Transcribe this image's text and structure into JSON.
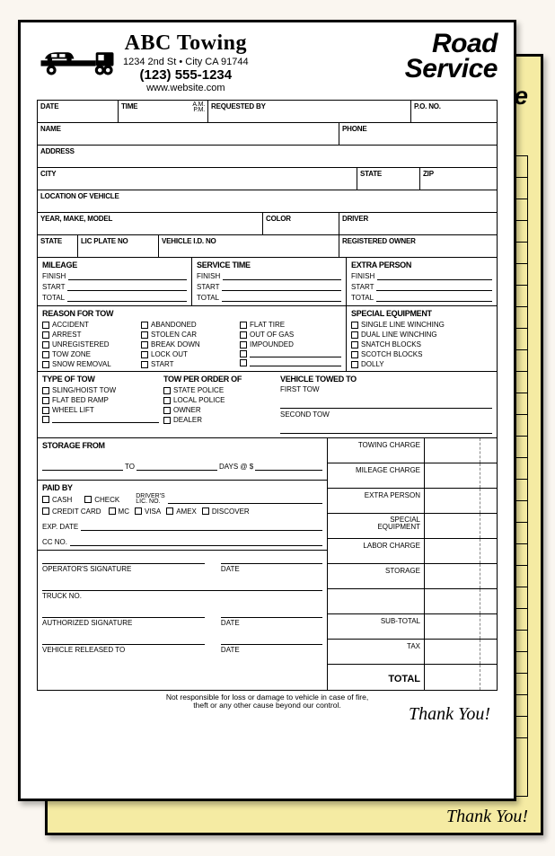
{
  "header": {
    "company_name": "ABC Towing",
    "address": "1234  2nd St • City CA 91744",
    "phone": "(123) 555-1234",
    "website": "www.website.com",
    "title_line1": "Road",
    "title_line2": "Service"
  },
  "colors": {
    "page_bg": "#faf6f0",
    "form_bg": "#ffffff",
    "copy_bg": "#f5eba3",
    "ink": "#000000"
  },
  "fonts": {
    "company_name": {
      "family": "Comic Sans MS",
      "size_pt": 24,
      "weight": "bold"
    },
    "road_service": {
      "family": "Arial Black",
      "size_pt": 30,
      "weight": "900",
      "style": "italic"
    },
    "field_label": {
      "family": "Arial",
      "size_pt": 8,
      "weight": "bold"
    },
    "section_title": {
      "family": "Arial",
      "size_pt": 9,
      "weight": "bold"
    },
    "body": {
      "family": "Arial",
      "size_pt": 8
    },
    "thank_you": {
      "family": "Brush Script MT",
      "size_pt": 20,
      "style": "italic"
    }
  },
  "fields": {
    "date": "DATE",
    "time": "TIME",
    "am": "A.M.",
    "pm": "P.M.",
    "requested_by": "REQUESTED BY",
    "po_no": "P.O. NO.",
    "name": "NAME",
    "phone": "PHONE",
    "address": "ADDRESS",
    "city": "CITY",
    "state": "STATE",
    "zip": "ZIP",
    "location": "LOCATION OF VEHICLE",
    "ymm": "YEAR, MAKE, MODEL",
    "color": "COLOR",
    "driver": "DRIVER",
    "state2": "STATE",
    "lic_plate": "LIC PLATE NO",
    "vin": "VEHICLE I.D. NO",
    "reg_owner": "REGISTERED OWNER"
  },
  "mileage": {
    "title": "MILEAGE",
    "finish": "FINISH",
    "start": "START",
    "total": "TOTAL"
  },
  "service_time": {
    "title": "SERVICE TIME",
    "finish": "FINISH",
    "start": "START",
    "total": "TOTAL"
  },
  "extra_person": {
    "title": "EXTRA PERSON",
    "finish": "FINISH",
    "start": "START",
    "total": "TOTAL"
  },
  "reason": {
    "title": "REASON FOR TOW",
    "col1": [
      "ACCIDENT",
      "ARREST",
      "UNREGISTERED",
      "TOW ZONE",
      "SNOW REMOVAL"
    ],
    "col2": [
      "ABANDONED",
      "STOLEN CAR",
      "BREAK DOWN",
      "LOCK OUT",
      "START"
    ],
    "col3": [
      "FLAT TIRE",
      "OUT OF GAS",
      "IMPOUNDED",
      "",
      ""
    ]
  },
  "equipment": {
    "title": "SPECIAL EQUIPMENT",
    "items": [
      "SINGLE LINE WINCHING",
      "DUAL LINE WINCHING",
      "SNATCH BLOCKS",
      "SCOTCH BLOCKS",
      "DOLLY"
    ]
  },
  "type_of_tow": {
    "title": "TYPE OF TOW",
    "items": [
      "SLING/HOIST TOW",
      "FLAT BED RAMP",
      "WHEEL LIFT",
      ""
    ]
  },
  "tow_per_order": {
    "title": "TOW PER ORDER OF",
    "items": [
      "STATE POLICE",
      "LOCAL POLICE",
      "OWNER",
      "DEALER"
    ]
  },
  "vehicle_towed_to": {
    "title": "VEHICLE TOWED TO",
    "first": "FIRST TOW",
    "second": "SECOND TOW"
  },
  "storage": {
    "title": "STORAGE FROM",
    "to": "TO",
    "days_at": "DAYS @ $"
  },
  "paid_by": {
    "title": "PAID BY",
    "cash": "CASH",
    "check": "CHECK",
    "drivers_lic": "DRIVER'S\nLIC. NO.",
    "credit_card": "CREDIT CARD",
    "mc": "MC",
    "visa": "VISA",
    "amex": "AMEX",
    "discover": "DISCOVER",
    "exp_date": "EXP. DATE",
    "cc_no": "CC NO."
  },
  "sigs": {
    "operator": "OPERATOR'S SIGNATURE",
    "date": "DATE",
    "truck_no": "TRUCK NO.",
    "authorized": "AUTHORIZED SIGNATURE",
    "released_to": "VEHICLE RELEASED TO"
  },
  "charges": {
    "rows": [
      {
        "label": "TOWING CHARGE"
      },
      {
        "label": "MILEAGE CHARGE"
      },
      {
        "label": "EXTRA PERSON"
      },
      {
        "label": "SPECIAL\nEQUIPMENT",
        "two_line": true
      },
      {
        "label": "LABOR CHARGE"
      },
      {
        "label": "STORAGE"
      },
      {
        "label": "",
        "gap": true
      },
      {
        "label": "SUB-TOTAL"
      },
      {
        "label": "TAX"
      },
      {
        "label": "TOTAL",
        "total": true
      }
    ]
  },
  "footer": {
    "disclaimer_l1": "Not responsible for loss or damage to vehicle in case of fire,",
    "disclaimer_l2": "theft or any other cause beyond our control.",
    "thank_you": "Thank You!"
  }
}
